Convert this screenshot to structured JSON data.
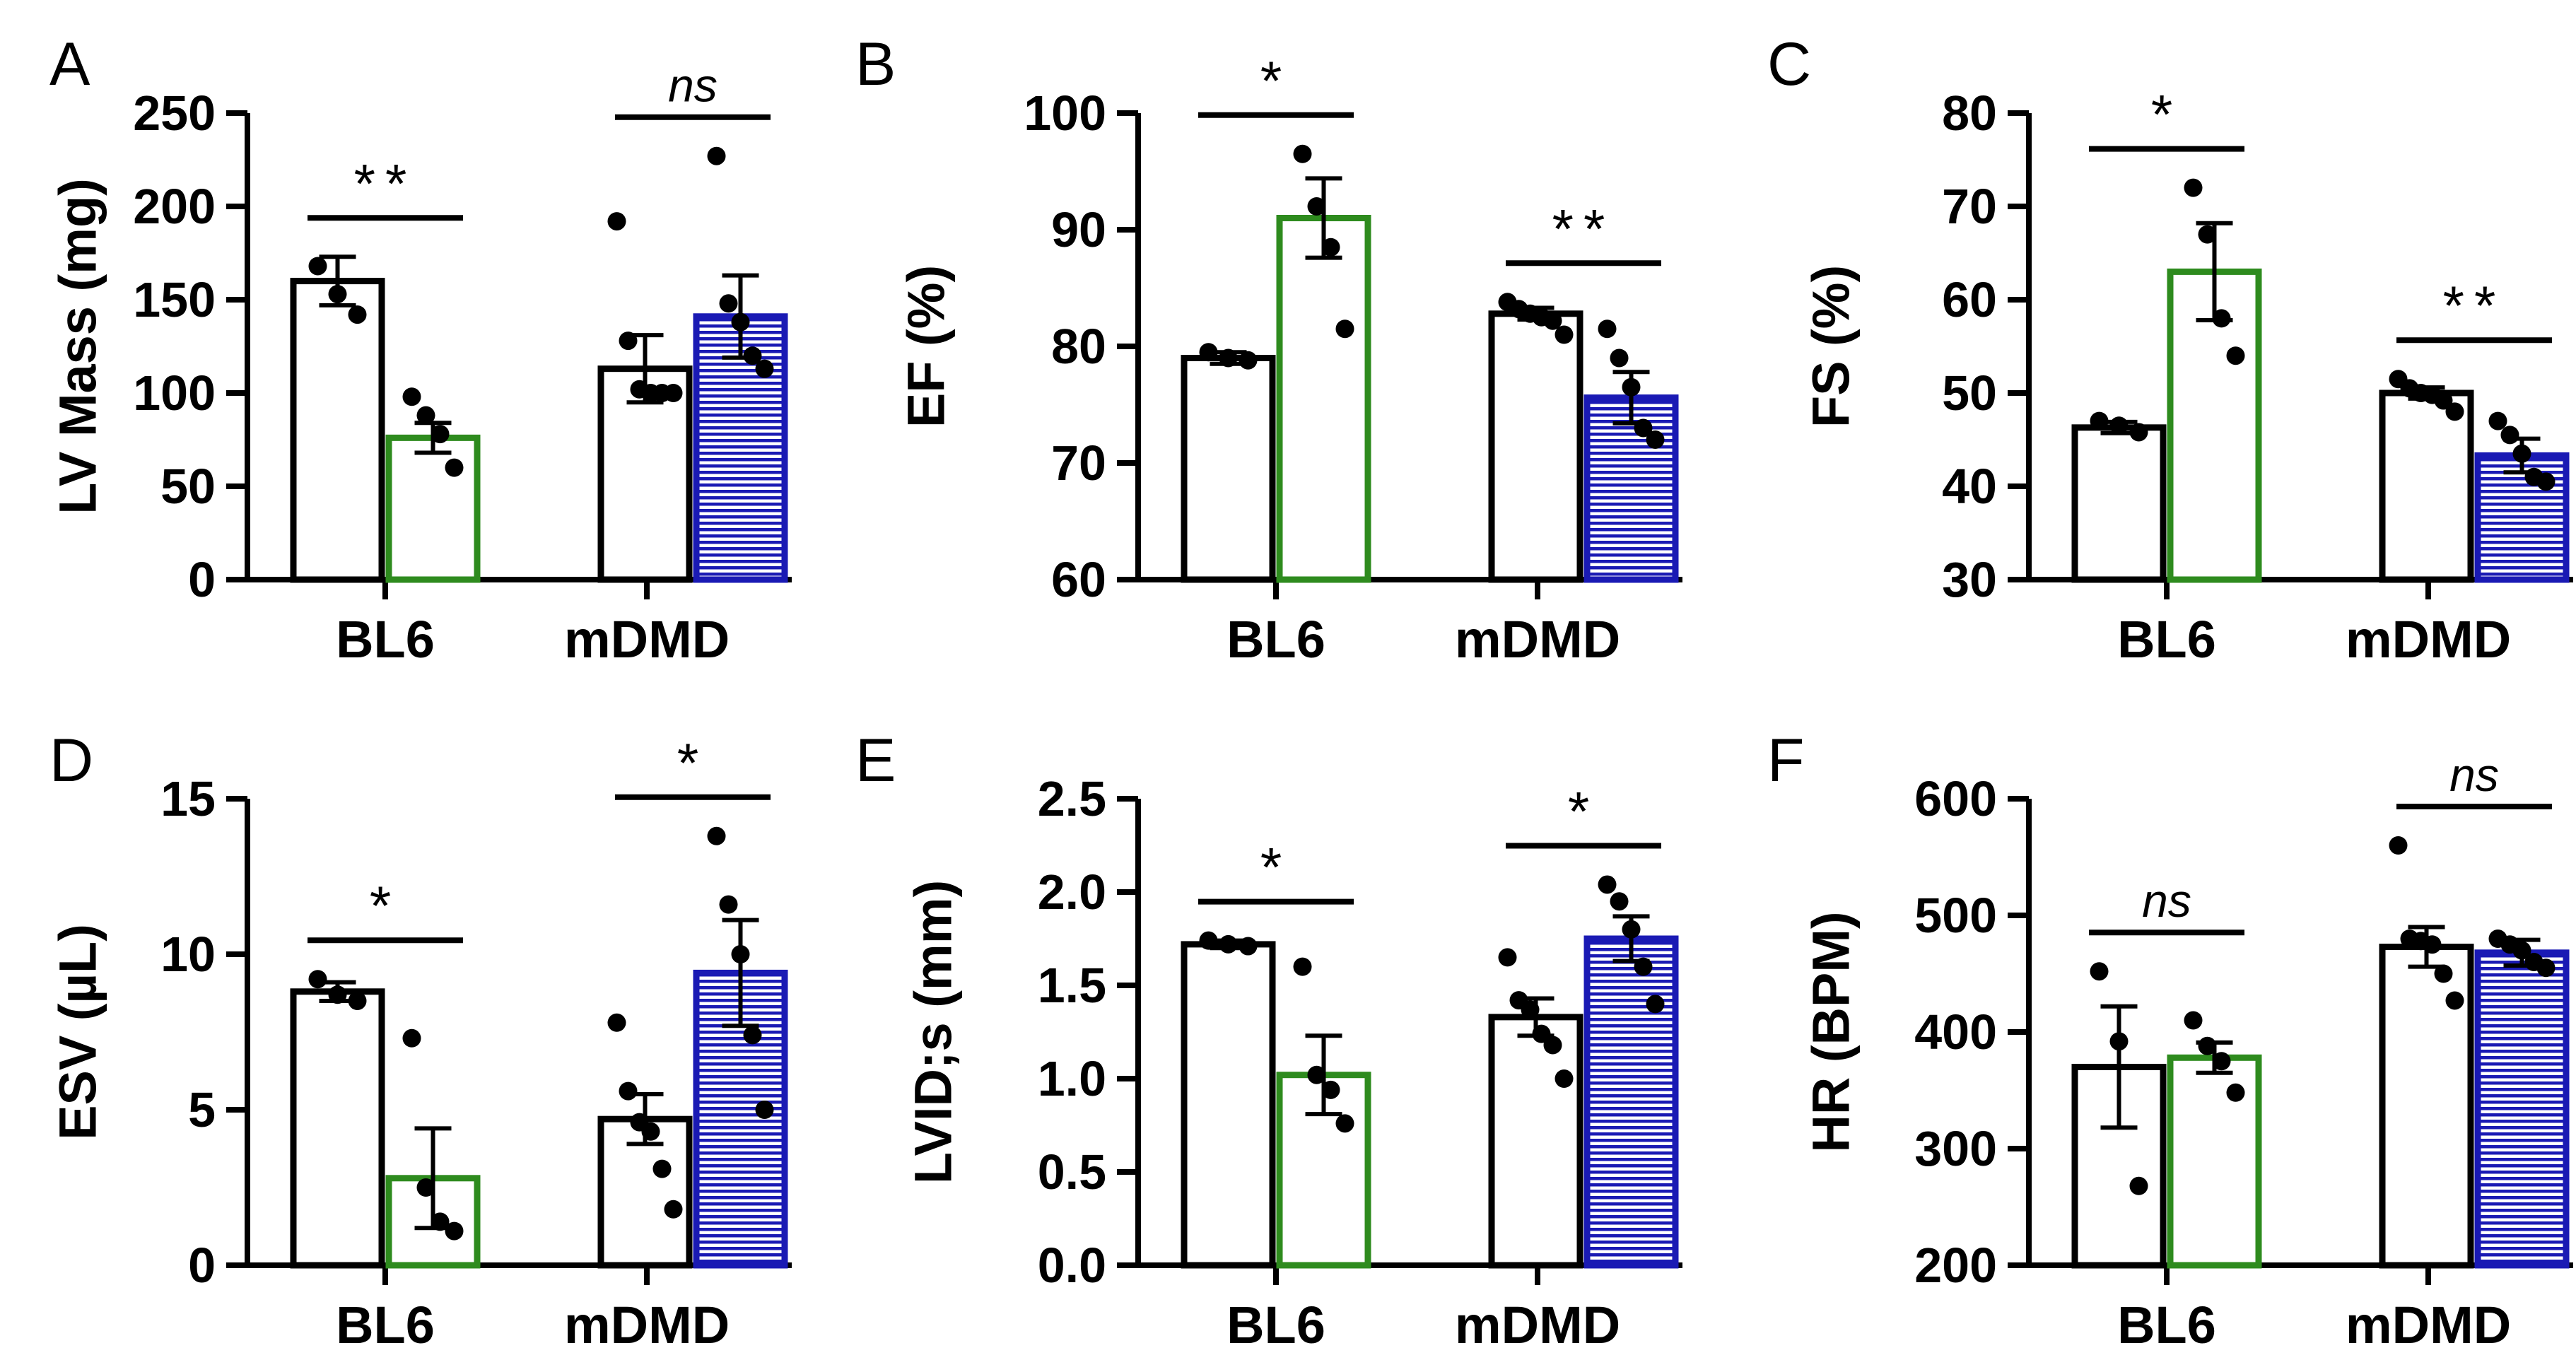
{
  "colors": {
    "axis": "#000000",
    "bl6_control_edge": "#000000",
    "bl6_treated_edge": "#2e8b1e",
    "mdmd_treated_edge": "#1a1ab4",
    "mdmd_treated_hatch": "#1a1ab4",
    "points": "#000000"
  },
  "chart_data": [
    {
      "type": "bar",
      "panel": "A",
      "ylabel": "LV Mass (mg)",
      "ylim": [
        0,
        250
      ],
      "yticks": [
        0,
        50,
        100,
        150,
        200,
        250
      ],
      "categories": [
        "BL6",
        "mDMD"
      ],
      "bars": [
        {
          "group": "BL6",
          "style": "white",
          "mean": 160,
          "sem": 13,
          "points": [
            168,
            153,
            142
          ]
        },
        {
          "group": "BL6",
          "style": "green",
          "mean": 76,
          "sem": 8,
          "points": [
            98,
            88,
            78,
            60
          ]
        },
        {
          "group": "mDMD",
          "style": "white",
          "mean": 113,
          "sem": 18,
          "points": [
            192,
            128,
            102,
            100,
            100,
            100
          ]
        },
        {
          "group": "mDMD",
          "style": "blue",
          "mean": 141,
          "sem": 22,
          "points": [
            227,
            148,
            138,
            120,
            113
          ]
        }
      ],
      "comparisons": [
        {
          "group": "BL6",
          "label": "**",
          "italic": false
        },
        {
          "group": "mDMD",
          "label": "ns",
          "italic": true
        }
      ]
    },
    {
      "type": "bar",
      "panel": "B",
      "ylabel": "EF (%)",
      "ylim": [
        60,
        100
      ],
      "yticks": [
        60,
        70,
        80,
        90,
        100
      ],
      "categories": [
        "BL6",
        "mDMD"
      ],
      "bars": [
        {
          "group": "BL6",
          "style": "white",
          "mean": 79,
          "sem": 0.5,
          "points": [
            79.5,
            79.0,
            78.8
          ]
        },
        {
          "group": "BL6",
          "style": "green",
          "mean": 91,
          "sem": 3.4,
          "points": [
            96.5,
            92,
            88.5,
            81.5
          ]
        },
        {
          "group": "mDMD",
          "style": "white",
          "mean": 82.8,
          "sem": 0.5,
          "points": [
            83.8,
            83.2,
            82.8,
            82.5,
            82.2,
            81.0
          ]
        },
        {
          "group": "mDMD",
          "style": "blue",
          "mean": 75.6,
          "sem": 2.2,
          "points": [
            81.5,
            79.0,
            76.5,
            73.0,
            72.0
          ]
        }
      ],
      "comparisons": [
        {
          "group": "BL6",
          "label": "*",
          "italic": false
        },
        {
          "group": "mDMD",
          "label": "**",
          "italic": false
        }
      ]
    },
    {
      "type": "bar",
      "panel": "C",
      "ylabel": "FS (%)",
      "ylim": [
        30,
        80
      ],
      "yticks": [
        30,
        40,
        50,
        60,
        70,
        80
      ],
      "categories": [
        "BL6",
        "mDMD"
      ],
      "bars": [
        {
          "group": "BL6",
          "style": "white",
          "mean": 46.3,
          "sem": 0.6,
          "points": [
            47.0,
            46.5,
            45.8
          ]
        },
        {
          "group": "BL6",
          "style": "green",
          "mean": 63,
          "sem": 5.2,
          "points": [
            72,
            67,
            58,
            54
          ]
        },
        {
          "group": "mDMD",
          "style": "white",
          "mean": 50,
          "sem": 0.6,
          "points": [
            51.5,
            50.5,
            50.0,
            49.8,
            49.2,
            48.0
          ]
        },
        {
          "group": "mDMD",
          "style": "blue",
          "mean": 43.3,
          "sem": 1.8,
          "points": [
            47.0,
            45.5,
            43.5,
            41.0,
            40.5
          ]
        }
      ],
      "comparisons": [
        {
          "group": "BL6",
          "label": "*",
          "italic": false
        },
        {
          "group": "mDMD",
          "label": "**",
          "italic": false
        }
      ]
    },
    {
      "type": "bar",
      "panel": "D",
      "ylabel": "ESV (µL)",
      "ylim": [
        0,
        15
      ],
      "yticks": [
        0,
        5,
        10,
        15
      ],
      "categories": [
        "BL6",
        "mDMD"
      ],
      "bars": [
        {
          "group": "BL6",
          "style": "white",
          "mean": 8.8,
          "sem": 0.3,
          "points": [
            9.2,
            8.7,
            8.5
          ]
        },
        {
          "group": "BL6",
          "style": "green",
          "mean": 2.8,
          "sem": 1.6,
          "points": [
            7.3,
            2.5,
            1.4,
            1.1
          ]
        },
        {
          "group": "mDMD",
          "style": "white",
          "mean": 4.7,
          "sem": 0.8,
          "points": [
            7.8,
            5.6,
            4.6,
            4.3,
            3.1,
            1.8
          ]
        },
        {
          "group": "mDMD",
          "style": "blue",
          "mean": 9.4,
          "sem": 1.7,
          "points": [
            13.8,
            11.6,
            10.0,
            7.4,
            5.0
          ]
        }
      ],
      "comparisons": [
        {
          "group": "BL6",
          "label": "*",
          "italic": false
        },
        {
          "group": "mDMD",
          "label": "*",
          "italic": false
        }
      ]
    },
    {
      "type": "bar",
      "panel": "E",
      "ylabel": "LVID;s (mm)",
      "ylim": [
        0,
        2.5
      ],
      "yticks": [
        "0.0",
        "0.5",
        "1.0",
        "1.5",
        "2.0",
        "2.5"
      ],
      "categories": [
        "BL6",
        "mDMD"
      ],
      "bars": [
        {
          "group": "BL6",
          "style": "white",
          "mean": 1.72,
          "sem": 0.02,
          "points": [
            1.74,
            1.72,
            1.71
          ]
        },
        {
          "group": "BL6",
          "style": "green",
          "mean": 1.02,
          "sem": 0.21,
          "points": [
            1.6,
            1.02,
            0.94,
            0.76
          ]
        },
        {
          "group": "mDMD",
          "style": "white",
          "mean": 1.33,
          "sem": 0.1,
          "points": [
            1.65,
            1.42,
            1.37,
            1.24,
            1.18,
            1.0
          ]
        },
        {
          "group": "mDMD",
          "style": "blue",
          "mean": 1.75,
          "sem": 0.12,
          "points": [
            2.04,
            1.95,
            1.8,
            1.6,
            1.4
          ]
        }
      ],
      "comparisons": [
        {
          "group": "BL6",
          "label": "*",
          "italic": false
        },
        {
          "group": "mDMD",
          "label": "*",
          "italic": false
        }
      ]
    },
    {
      "type": "bar",
      "panel": "F",
      "ylabel": "HR (BPM)",
      "ylim": [
        200,
        600
      ],
      "yticks": [
        200,
        300,
        400,
        500,
        600
      ],
      "categories": [
        "BL6",
        "mDMD"
      ],
      "bars": [
        {
          "group": "BL6",
          "style": "white",
          "mean": 370,
          "sem": 52,
          "points": [
            452,
            392,
            268
          ]
        },
        {
          "group": "BL6",
          "style": "green",
          "mean": 378,
          "sem": 13,
          "points": [
            410,
            388,
            375,
            348
          ]
        },
        {
          "group": "mDMD",
          "style": "white",
          "mean": 473,
          "sem": 17,
          "points": [
            560,
            480,
            478,
            475,
            450,
            427
          ]
        },
        {
          "group": "mDMD",
          "style": "blue",
          "mean": 468,
          "sem": 11,
          "points": [
            480,
            475,
            470,
            460,
            455
          ]
        }
      ],
      "comparisons": [
        {
          "group": "BL6",
          "label": "ns",
          "italic": true
        },
        {
          "group": "mDMD",
          "label": "ns",
          "italic": true
        }
      ]
    }
  ]
}
